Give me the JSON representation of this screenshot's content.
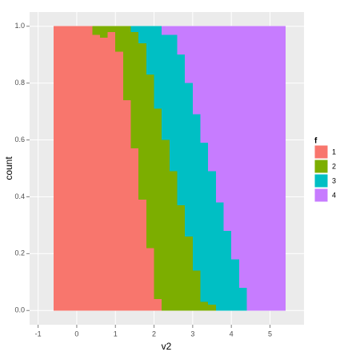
{
  "chart_data": {
    "type": "histogram",
    "position": "fill",
    "x_label": "v2",
    "y_label": "count",
    "legend_title": "f",
    "legend_position": "right",
    "bins": [
      -0.6,
      -0.4,
      -0.2,
      0,
      0.2,
      0.4,
      0.6,
      0.8,
      1,
      1.2,
      1.4,
      1.6,
      1.8,
      2,
      2.2,
      2.4,
      2.6,
      2.8,
      3,
      3.2,
      3.4,
      3.6,
      3.8,
      4,
      4.2,
      4.4,
      4.6,
      4.8,
      5,
      5.2,
      5.4
    ],
    "series": [
      {
        "name": "1",
        "color": "#F8766D",
        "values": [
          1,
          1,
          1,
          1,
          1,
          0.97,
          0.96,
          0.98,
          0.91,
          0.74,
          0.57,
          0.39,
          0.22,
          0.04,
          0,
          0,
          0,
          0,
          0,
          0,
          0,
          0,
          0,
          0,
          0,
          0,
          0,
          0,
          0,
          0
        ]
      },
      {
        "name": "2",
        "color": "#7CAE00",
        "values": [
          0,
          0,
          0,
          0,
          0,
          0.03,
          0.04,
          0.02,
          0.09,
          0.26,
          0.41,
          0.55,
          0.61,
          0.67,
          0.6,
          0.49,
          0.37,
          0.26,
          0.14,
          0.03,
          0.02,
          0,
          0,
          0,
          0,
          0,
          0,
          0,
          0,
          0
        ]
      },
      {
        "name": "3",
        "color": "#00BFC4",
        "values": [
          0,
          0,
          0,
          0,
          0,
          0,
          0,
          0,
          0,
          0,
          0.02,
          0.06,
          0.17,
          0.29,
          0.37,
          0.48,
          0.53,
          0.54,
          0.55,
          0.56,
          0.47,
          0.38,
          0.28,
          0.18,
          0.08,
          0,
          0,
          0,
          0,
          0
        ]
      },
      {
        "name": "4",
        "color": "#C77CFF",
        "values": [
          0,
          0,
          0,
          0,
          0,
          0,
          0,
          0,
          0,
          0,
          0,
          0,
          0,
          0,
          0.03,
          0.03,
          0.1,
          0.2,
          0.31,
          0.41,
          0.51,
          0.62,
          0.72,
          0.82,
          0.92,
          1,
          1,
          1,
          1,
          1
        ]
      }
    ],
    "xlim": [
      -1.22,
      5.88
    ],
    "xticks": [
      -1,
      0,
      1,
      2,
      3,
      4,
      5
    ],
    "ylim": [
      -0.05,
      1.05
    ],
    "yticks": [
      {
        "value": 0,
        "label": "0.0"
      },
      {
        "value": 0.2,
        "label": "0.2"
      },
      {
        "value": 0.4,
        "label": "0.4"
      },
      {
        "value": 0.6,
        "label": "0.6"
      },
      {
        "value": 0.8,
        "label": "0.8"
      },
      {
        "value": 1,
        "label": "1.0"
      }
    ],
    "grid": true,
    "panel_color": "#EBEBEB"
  }
}
